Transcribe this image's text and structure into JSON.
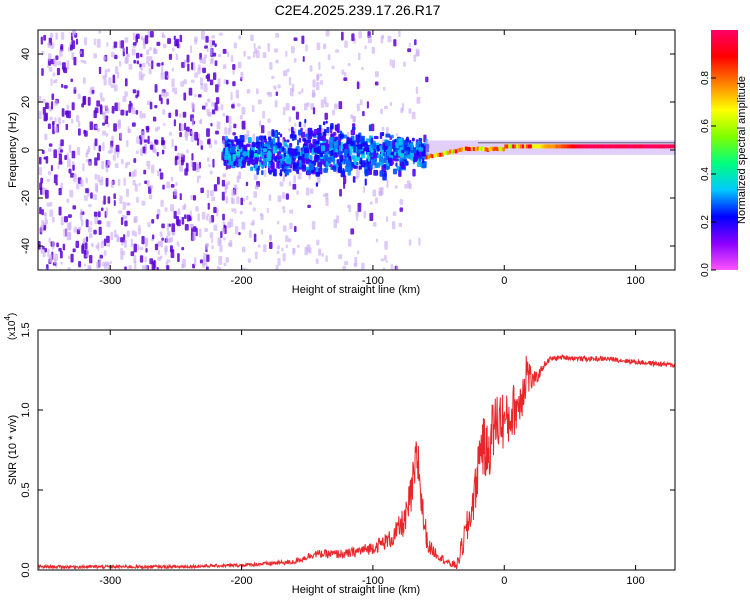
{
  "figure_title": "C2E4.2025.239.17.26.R17",
  "colors": {
    "axes": "#000000",
    "snr_line": "#e8262a",
    "spectro_light": "#c9a8f5",
    "spectro_dark": "#5a00d6"
  },
  "chart_data": [
    {
      "type": "heatmap",
      "name": "spectrogram",
      "xlabel": "Height of straight line (km)",
      "ylabel": "Frequency (Hz)",
      "xlim": [
        -355,
        130
      ],
      "ylim": [
        -50,
        50
      ],
      "x_ticks": [
        -300,
        -200,
        -100,
        0,
        100
      ],
      "x_tick_labels": [
        "-300",
        "-200",
        "-100",
        "0",
        "100"
      ],
      "y_ticks": [
        -40,
        -20,
        0,
        20,
        40
      ],
      "y_tick_labels": [
        "-40",
        "-20",
        "0",
        "20",
        "40"
      ],
      "colorbar": {
        "label": "Normalized spectral amplitude",
        "range": [
          0.0,
          1.0
        ],
        "ticks": [
          0.0,
          0.2,
          0.4,
          0.6,
          0.8
        ],
        "tick_labels": [
          "0.0",
          "0.2",
          "0.4",
          "0.6",
          "0.8"
        ],
        "colormap": [
          "#ff55ff",
          "#8a00ff",
          "#0000ff",
          "#00c8ff",
          "#00ff7f",
          "#7fff00",
          "#ffff00",
          "#ff8000",
          "#ff0000",
          "#ff0066"
        ]
      },
      "features": {
        "broadband_noise_x_range": [
          -355,
          -60
        ],
        "strong_band_x_range": [
          -215,
          -60
        ],
        "carrier_x_range": [
          -60,
          130
        ],
        "carrier_frequency_hz": 1.5,
        "carrier_peak_amplitude": 0.95
      }
    },
    {
      "type": "line",
      "name": "snr",
      "xlabel": "Height of straight line (km)",
      "ylabel": "SNR (10 * v/v)",
      "y_exponent_label": "(x10",
      "y_exponent_power": "4",
      "y_exponent_close": ")",
      "xlim": [
        -355,
        130
      ],
      "ylim": [
        0,
        1.5
      ],
      "x_ticks": [
        -300,
        -200,
        -100,
        0,
        100
      ],
      "x_tick_labels": [
        "-300",
        "-200",
        "-100",
        "0",
        "100"
      ],
      "y_ticks": [
        0.0,
        0.5,
        1.0,
        1.5
      ],
      "y_tick_labels": [
        "0.0",
        "0.5",
        "1.0",
        "1.5"
      ],
      "series": [
        {
          "name": "SNR",
          "x": [
            -355,
            -250,
            -200,
            -160,
            -145,
            -120,
            -100,
            -85,
            -75,
            -70,
            -66,
            -62,
            -58,
            -50,
            -42,
            -36,
            -32,
            -27,
            -22,
            -18,
            -13,
            -8,
            -3,
            2,
            7,
            12,
            17,
            21,
            25,
            30,
            35,
            45,
            60,
            80,
            100,
            115,
            130
          ],
          "y": [
            0.02,
            0.02,
            0.03,
            0.05,
            0.1,
            0.1,
            0.14,
            0.2,
            0.32,
            0.5,
            0.72,
            0.35,
            0.15,
            0.09,
            0.04,
            0.03,
            0.15,
            0.3,
            0.5,
            0.8,
            0.72,
            0.9,
            0.95,
            0.92,
            1.0,
            1.05,
            1.25,
            1.18,
            1.2,
            1.28,
            1.32,
            1.33,
            1.32,
            1.32,
            1.3,
            1.29,
            1.28
          ],
          "noise": [
            0.01,
            0.01,
            0.01,
            0.015,
            0.025,
            0.03,
            0.04,
            0.06,
            0.1,
            0.15,
            0.2,
            0.12,
            0.05,
            0.03,
            0.02,
            0.03,
            0.08,
            0.12,
            0.15,
            0.18,
            0.2,
            0.2,
            0.2,
            0.18,
            0.17,
            0.15,
            0.18,
            0.06,
            0.04,
            0.02,
            0.015,
            0.015,
            0.015,
            0.015,
            0.015,
            0.015,
            0.015
          ]
        }
      ]
    }
  ]
}
